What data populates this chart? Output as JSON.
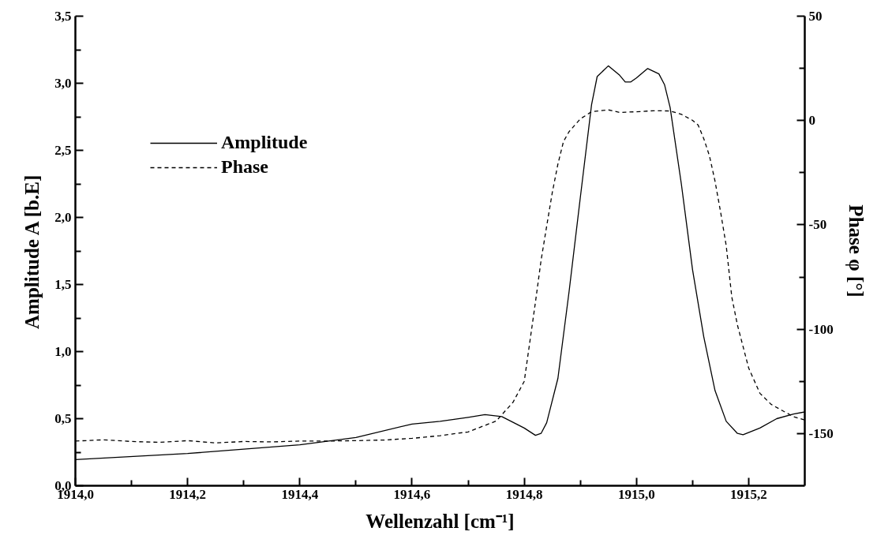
{
  "chart_data": {
    "type": "line",
    "xlabel": "Wellenzahl [cm⁻¹]",
    "ylabel": "Amplitude A [b.E]",
    "y2label": "Phase φ [°]",
    "xlim": [
      1914.0,
      1915.3
    ],
    "ylim": [
      0,
      3.5
    ],
    "y2lim": [
      -175,
      50
    ],
    "xticks": [
      {
        "value": 1914.0,
        "label": "1914,0"
      },
      {
        "value": 1914.1,
        "label": null
      },
      {
        "value": 1914.2,
        "label": "1914,2"
      },
      {
        "value": 1914.3,
        "label": null
      },
      {
        "value": 1914.4,
        "label": "1914,4"
      },
      {
        "value": 1914.5,
        "label": null
      },
      {
        "value": 1914.6,
        "label": "1914,6"
      },
      {
        "value": 1914.7,
        "label": null
      },
      {
        "value": 1914.8,
        "label": "1914,8"
      },
      {
        "value": 1914.9,
        "label": null
      },
      {
        "value": 1915.0,
        "label": "1915,0"
      },
      {
        "value": 1915.1,
        "label": null
      },
      {
        "value": 1915.2,
        "label": "1915,2"
      }
    ],
    "yticks": [
      {
        "value": 0,
        "label": "0,0"
      },
      {
        "value": 0.25,
        "label": null
      },
      {
        "value": 0.5,
        "label": "0,5"
      },
      {
        "value": 0.75,
        "label": null
      },
      {
        "value": 1.0,
        "label": "1,0"
      },
      {
        "value": 1.25,
        "label": null
      },
      {
        "value": 1.5,
        "label": "1,5"
      },
      {
        "value": 1.75,
        "label": null
      },
      {
        "value": 2.0,
        "label": "2,0"
      },
      {
        "value": 2.25,
        "label": null
      },
      {
        "value": 2.5,
        "label": "2,5"
      },
      {
        "value": 2.75,
        "label": null
      },
      {
        "value": 3.0,
        "label": "3,0"
      },
      {
        "value": 3.25,
        "label": null
      },
      {
        "value": 3.5,
        "label": "3,5"
      }
    ],
    "y2ticks": [
      -150,
      {
        "value": -125,
        "label": null
      },
      -100,
      {
        "value": -75,
        "label": null
      },
      -50,
      {
        "value": -25,
        "label": null
      },
      0,
      {
        "value": 25,
        "label": null
      },
      50
    ],
    "grid": false,
    "legend": "top left",
    "marker": "none",
    "series": [
      {
        "name": "Amplitude",
        "color": "#000000",
        "line_style": "solid",
        "x": [
          1914.0,
          1914.2,
          1914.4,
          1914.5,
          1914.6,
          1914.65,
          1914.7,
          1914.73,
          1914.76,
          1914.8,
          1914.82,
          1914.83,
          1914.84,
          1914.86,
          1914.88,
          1914.9,
          1914.92,
          1914.93,
          1914.95,
          1914.97,
          1914.98,
          1914.99,
          1915.0,
          1915.02,
          1915.04,
          1915.05,
          1915.06,
          1915.08,
          1915.1,
          1915.12,
          1915.14,
          1915.16,
          1915.18,
          1915.19,
          1915.22,
          1915.25,
          1915.28,
          1915.3
        ],
        "values": [
          0.195,
          0.24,
          0.305,
          0.36,
          0.46,
          0.48,
          0.51,
          0.53,
          0.515,
          0.43,
          0.376,
          0.39,
          0.47,
          0.8,
          1.45,
          2.15,
          2.84,
          3.05,
          3.13,
          3.06,
          3.01,
          3.01,
          3.04,
          3.11,
          3.07,
          2.99,
          2.82,
          2.25,
          1.61,
          1.11,
          0.71,
          0.48,
          0.39,
          0.38,
          0.43,
          0.5,
          0.535,
          0.55
        ]
      },
      {
        "name": "Phase",
        "color": "#000000",
        "line_style": "dashed",
        "axis": "y2",
        "x": [
          1914.0,
          1914.05,
          1914.1,
          1914.15,
          1914.2,
          1914.25,
          1914.3,
          1914.35,
          1914.4,
          1914.45,
          1914.5,
          1914.55,
          1914.6,
          1914.65,
          1914.7,
          1914.75,
          1914.78,
          1914.8,
          1914.82,
          1914.83,
          1914.84,
          1914.85,
          1914.86,
          1914.87,
          1914.88,
          1914.9,
          1914.92,
          1914.95,
          1914.97,
          1915.0,
          1915.03,
          1915.06,
          1915.08,
          1915.1,
          1915.11,
          1915.12,
          1915.13,
          1915.14,
          1915.15,
          1915.16,
          1915.17,
          1915.18,
          1915.2,
          1915.22,
          1915.24,
          1915.26,
          1915.28,
          1915.3
        ],
        "values": [
          -153.6,
          -153,
          -153.8,
          -154.2,
          -153.4,
          -154.5,
          -153.8,
          -154,
          -153.6,
          -153.6,
          -153.4,
          -153.1,
          -152.3,
          -151,
          -149.2,
          -144,
          -135,
          -125,
          -87,
          -67,
          -50.6,
          -34.5,
          -20.9,
          -10,
          -5.3,
          0.8,
          4.2,
          5.1,
          3.9,
          4.2,
          4.7,
          4.6,
          3,
          0.1,
          -2.2,
          -8.7,
          -16.8,
          -29,
          -43.9,
          -60,
          -84.7,
          -98,
          -118.6,
          -130.7,
          -136,
          -139,
          -141.9,
          -143.5
        ]
      }
    ]
  }
}
